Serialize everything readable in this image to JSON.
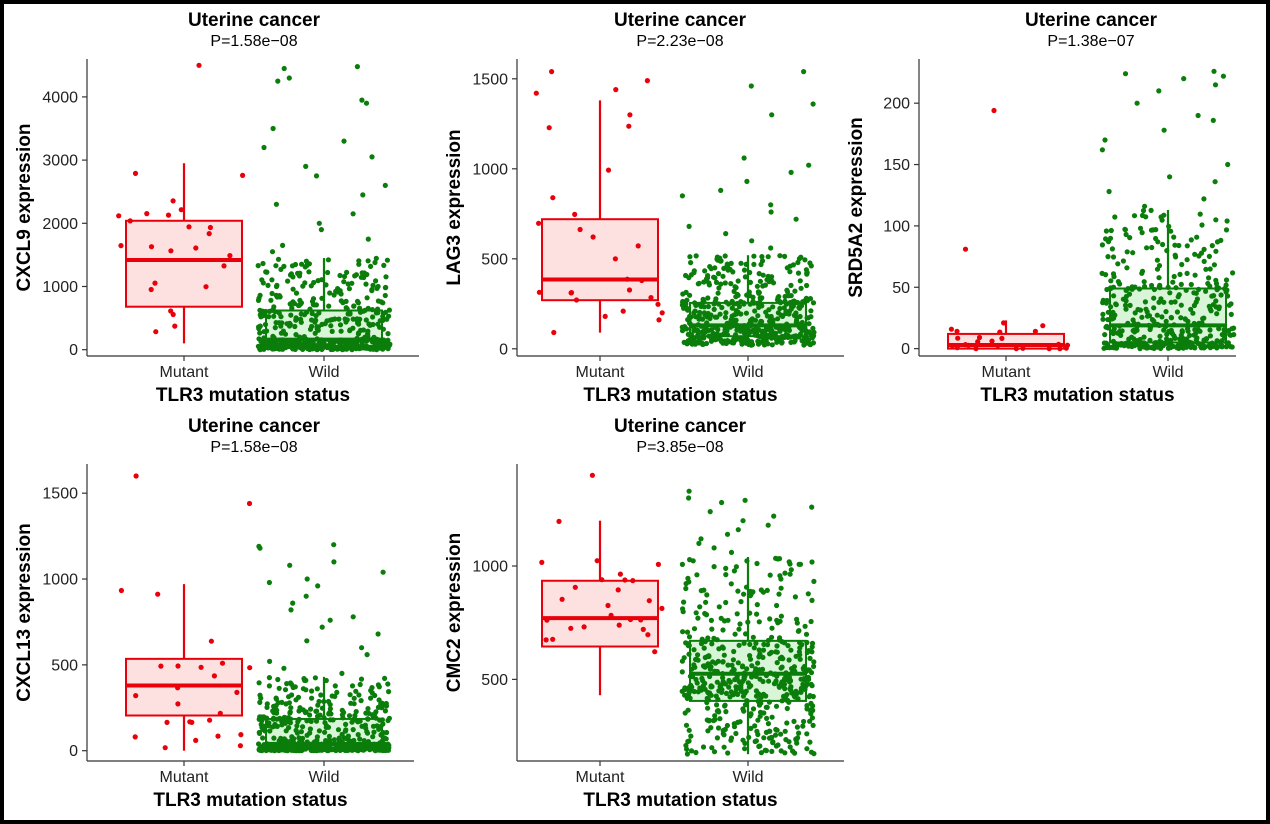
{
  "colors": {
    "mutant": "#e8000b",
    "mutant_fill": "#fde0e0",
    "wild": "#0a7d0a",
    "wild_fill": "#d8f5d8",
    "axis": "#333333"
  },
  "chart_data": [
    {
      "type": "box",
      "title": "Uterine cancer",
      "subtitle": "P=1.58e−08",
      "xlabel": "TLR3 mutation status",
      "ylabel": "CXCL9 expression",
      "categories": [
        "Mutant",
        "Wild"
      ],
      "ylim": [
        -100,
        4600
      ],
      "yticks": [
        0,
        1000,
        2000,
        3000,
        4000
      ],
      "boxes": [
        {
          "name": "Mutant",
          "min": 100,
          "q1": 680,
          "median": 1420,
          "q3": 2040,
          "max": 2950,
          "n": 24
        },
        {
          "name": "Wild",
          "min": 0,
          "q1": 60,
          "median": 160,
          "q3": 620,
          "max": 1450,
          "n": 520
        }
      ],
      "outliers": {
        "Mutant": [
          4500
        ],
        "Wild": [
          4480,
          4450,
          4300,
          4250,
          3950,
          3900,
          3500,
          3300,
          3200,
          3050,
          2900,
          2750,
          2600,
          2450,
          2300,
          2150,
          2000,
          1900,
          1750,
          1650,
          1550
        ]
      }
    },
    {
      "type": "box",
      "title": "Uterine cancer",
      "subtitle": "P=2.23e−08",
      "xlabel": "TLR3 mutation status",
      "ylabel": "LAG3 expression",
      "categories": [
        "Mutant",
        "Wild"
      ],
      "ylim": [
        -40,
        1610
      ],
      "yticks": [
        0,
        500,
        1000,
        1500
      ],
      "boxes": [
        {
          "name": "Mutant",
          "min": 90,
          "q1": 270,
          "median": 385,
          "q3": 720,
          "max": 1380,
          "n": 24
        },
        {
          "name": "Wild",
          "min": 20,
          "q1": 70,
          "median": 130,
          "q3": 255,
          "max": 520,
          "n": 520
        }
      ],
      "outliers": {
        "Mutant": [
          1540,
          1490,
          1440,
          1420,
          1300
        ],
        "Wild": [
          1540,
          1460,
          1360,
          1300,
          1060,
          1020,
          980,
          930,
          880,
          850,
          800,
          760,
          720,
          680,
          640,
          600,
          560
        ]
      }
    },
    {
      "type": "box",
      "title": "Uterine cancer",
      "subtitle": "P=1.38e−07",
      "xlabel": "TLR3 mutation status",
      "ylabel": "SRD5A2 expression",
      "categories": [
        "Mutant",
        "Wild"
      ],
      "ylim": [
        -6,
        236
      ],
      "yticks": [
        0,
        50,
        100,
        150,
        200
      ],
      "boxes": [
        {
          "name": "Mutant",
          "min": 0,
          "q1": 0,
          "median": 3,
          "q3": 12,
          "max": 23,
          "n": 24
        },
        {
          "name": "Wild",
          "min": 0,
          "q1": 5,
          "median": 19,
          "q3": 49,
          "max": 113,
          "n": 420
        }
      ],
      "outliers": {
        "Mutant": [
          194,
          81
        ],
        "Wild": [
          226,
          224,
          222,
          220,
          215,
          210,
          200,
          190,
          186,
          178,
          170,
          162,
          150,
          140,
          136,
          128,
          122,
          116
        ]
      }
    },
    {
      "type": "box",
      "title": "Uterine cancer",
      "subtitle": "P=1.58e−08",
      "xlabel": "TLR3 mutation status",
      "ylabel": "CXCL13 expression",
      "categories": [
        "Mutant",
        "Wild"
      ],
      "ylim": [
        -60,
        1670
      ],
      "yticks": [
        0,
        500,
        1000,
        1500
      ],
      "boxes": [
        {
          "name": "Mutant",
          "min": 0,
          "q1": 205,
          "median": 380,
          "q3": 535,
          "max": 970,
          "n": 24
        },
        {
          "name": "Wild",
          "min": 0,
          "q1": 10,
          "median": 40,
          "q3": 185,
          "max": 430,
          "n": 520
        }
      ],
      "outliers": {
        "Mutant": [
          1600,
          1440
        ],
        "Wild": [
          1200,
          1190,
          1180,
          1100,
          1080,
          1040,
          1000,
          980,
          960,
          900,
          860,
          820,
          780,
          760,
          720,
          680,
          640,
          600,
          560,
          520,
          480,
          450
        ]
      }
    },
    {
      "type": "box",
      "title": "Uterine cancer",
      "subtitle": "P=3.85e−08",
      "xlabel": "TLR3 mutation status",
      "ylabel": "CMC2 expression",
      "categories": [
        "Mutant",
        "Wild"
      ],
      "ylim": [
        140,
        1450
      ],
      "yticks": [
        500,
        1000
      ],
      "boxes": [
        {
          "name": "Mutant",
          "min": 430,
          "q1": 645,
          "median": 770,
          "q3": 935,
          "max": 1200,
          "n": 26
        },
        {
          "name": "Wild",
          "min": 170,
          "q1": 405,
          "median": 525,
          "q3": 670,
          "max": 1040,
          "n": 520
        }
      ],
      "outliers": {
        "Mutant": [
          1400
        ],
        "Wild": [
          1330,
          1300,
          1290,
          1280,
          1260,
          1240,
          1220,
          1200,
          1180,
          1160,
          1140,
          1120,
          1100,
          1080,
          1060
        ]
      }
    }
  ]
}
